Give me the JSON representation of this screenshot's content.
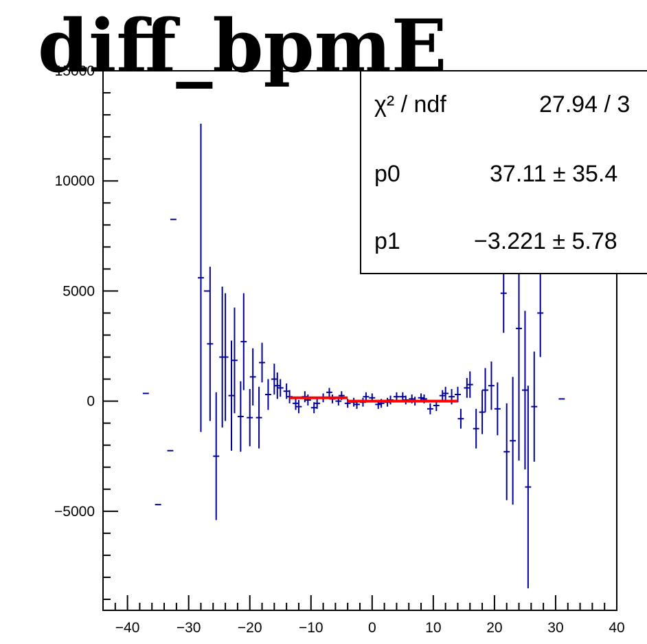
{
  "chart_data": {
    "type": "scatter",
    "title": "diff_bpmE",
    "xlabel": "",
    "ylabel": "",
    "xlim": [
      -44,
      40
    ],
    "ylim": [
      -9500,
      15000
    ],
    "x_ticks": [
      -40,
      -30,
      -20,
      -10,
      0,
      10,
      20,
      30,
      40
    ],
    "x_tick_labels": [
      "−40",
      "−30",
      "−20",
      "−10",
      "0",
      "10",
      "20",
      "30",
      "40"
    ],
    "y_ticks": [
      -5000,
      0,
      5000,
      10000,
      15000
    ],
    "y_tick_labels": [
      "−5000",
      "0",
      "5000",
      "10000",
      "15000"
    ],
    "grid": false,
    "series": [
      {
        "style": "error-bars",
        "color": "#000099",
        "points": [
          {
            "x": -37.0,
            "y": 350,
            "err": 0
          },
          {
            "x": -35.0,
            "y": -4700,
            "err": 0
          },
          {
            "x": -33.0,
            "y": -2250,
            "err": 0
          },
          {
            "x": -32.5,
            "y": 8250,
            "err": 0
          },
          {
            "x": -28.0,
            "y": 5600,
            "err": 7000
          },
          {
            "x": -27.0,
            "y": 5000,
            "err": 0
          },
          {
            "x": -26.5,
            "y": 2600,
            "err": 3500
          },
          {
            "x": -25.5,
            "y": -2500,
            "err": 2900
          },
          {
            "x": -24.5,
            "y": 2000,
            "err": 3200
          },
          {
            "x": -24.0,
            "y": 2000,
            "err": 2900
          },
          {
            "x": -23.0,
            "y": 250,
            "err": 2500
          },
          {
            "x": -22.5,
            "y": 1850,
            "err": 2400
          },
          {
            "x": -21.5,
            "y": -700,
            "err": 1600
          },
          {
            "x": -21.0,
            "y": 2700,
            "err": 2200
          },
          {
            "x": -20.0,
            "y": -750,
            "err": 1300
          },
          {
            "x": -19.5,
            "y": 1100,
            "err": 1300
          },
          {
            "x": -18.5,
            "y": -750,
            "err": 1400
          },
          {
            "x": -18.0,
            "y": 1750,
            "err": 900
          },
          {
            "x": -17.0,
            "y": 300,
            "err": 700
          },
          {
            "x": -16.0,
            "y": 1000,
            "err": 700
          },
          {
            "x": -15.5,
            "y": 700,
            "err": 600
          },
          {
            "x": -15.0,
            "y": 600,
            "err": 400
          },
          {
            "x": -14.0,
            "y": 450,
            "err": 350
          },
          {
            "x": -13.5,
            "y": 200,
            "err": 300
          },
          {
            "x": -12.5,
            "y": -100,
            "err": 300
          },
          {
            "x": -12.0,
            "y": -250,
            "err": 300
          },
          {
            "x": -11.0,
            "y": 200,
            "err": 250
          },
          {
            "x": -10.5,
            "y": 50,
            "err": 250
          },
          {
            "x": -9.5,
            "y": -300,
            "err": 250
          },
          {
            "x": -9.0,
            "y": -100,
            "err": 250
          },
          {
            "x": -8.0,
            "y": 150,
            "err": 200
          },
          {
            "x": -7.0,
            "y": 400,
            "err": 200
          },
          {
            "x": -6.5,
            "y": 100,
            "err": 200
          },
          {
            "x": -5.5,
            "y": 0,
            "err": 200
          },
          {
            "x": -5.0,
            "y": 250,
            "err": 200
          },
          {
            "x": -4.0,
            "y": -100,
            "err": 200
          },
          {
            "x": -3.0,
            "y": -50,
            "err": 200
          },
          {
            "x": -2.5,
            "y": -150,
            "err": 200
          },
          {
            "x": -1.5,
            "y": -50,
            "err": 200
          },
          {
            "x": -1.0,
            "y": 200,
            "err": 200
          },
          {
            "x": 0.0,
            "y": 150,
            "err": 200
          },
          {
            "x": 1.0,
            "y": -150,
            "err": 200
          },
          {
            "x": 1.5,
            "y": -100,
            "err": 200
          },
          {
            "x": 2.5,
            "y": -50,
            "err": 200
          },
          {
            "x": 3.0,
            "y": 50,
            "err": 200
          },
          {
            "x": 4.0,
            "y": 200,
            "err": 200
          },
          {
            "x": 5.0,
            "y": 200,
            "err": 200
          },
          {
            "x": 5.5,
            "y": 50,
            "err": 200
          },
          {
            "x": 6.5,
            "y": 100,
            "err": 200
          },
          {
            "x": 7.0,
            "y": 0,
            "err": 200
          },
          {
            "x": 8.0,
            "y": 150,
            "err": 200
          },
          {
            "x": 8.5,
            "y": 100,
            "err": 200
          },
          {
            "x": 9.5,
            "y": -350,
            "err": 250
          },
          {
            "x": 10.5,
            "y": -200,
            "err": 250
          },
          {
            "x": 11.5,
            "y": 250,
            "err": 250
          },
          {
            "x": 12.0,
            "y": 350,
            "err": 300
          },
          {
            "x": 13.0,
            "y": 200,
            "err": 350
          },
          {
            "x": 14.0,
            "y": 300,
            "err": 350
          },
          {
            "x": 14.5,
            "y": -800,
            "err": 450
          },
          {
            "x": 15.5,
            "y": 600,
            "err": 450
          },
          {
            "x": 16.0,
            "y": 750,
            "err": 600
          },
          {
            "x": 17.0,
            "y": -1250,
            "err": 900
          },
          {
            "x": 18.0,
            "y": -500,
            "err": 1000
          },
          {
            "x": 18.5,
            "y": 500,
            "err": 1000
          },
          {
            "x": 19.5,
            "y": 700,
            "err": 1100
          },
          {
            "x": 20.5,
            "y": -350,
            "err": 1200
          },
          {
            "x": 21.5,
            "y": 4900,
            "err": 1800
          },
          {
            "x": 22.0,
            "y": -2300,
            "err": 2200
          },
          {
            "x": 23.0,
            "y": -1800,
            "err": 2900
          },
          {
            "x": 24.0,
            "y": 3300,
            "err": 6000
          },
          {
            "x": 25.0,
            "y": 500,
            "err": 3600
          },
          {
            "x": 25.5,
            "y": -3900,
            "err": 4600
          },
          {
            "x": 26.5,
            "y": -250,
            "err": 2500
          },
          {
            "x": 27.5,
            "y": 4000,
            "err": 2000
          },
          {
            "x": 31.0,
            "y": 100,
            "err": 0
          },
          {
            "x": 34.5,
            "y": 5800,
            "err": 0
          }
        ]
      },
      {
        "style": "fit-line",
        "color": "#ff0000",
        "segments": [
          {
            "x0": -13.5,
            "y0": 150,
            "x1": -4.0,
            "y1": 150
          },
          {
            "x0": -4.0,
            "y0": 0,
            "x1": 14.0,
            "y1": 0
          }
        ]
      }
    ],
    "stats_box": {
      "rows": [
        {
          "label": "χ² / ndf",
          "value": "27.94 / 3"
        },
        {
          "label": "p0",
          "value": "37.11 ± 35.4"
        },
        {
          "label": "p1",
          "value": "−3.221 ± 5.78"
        }
      ]
    }
  }
}
